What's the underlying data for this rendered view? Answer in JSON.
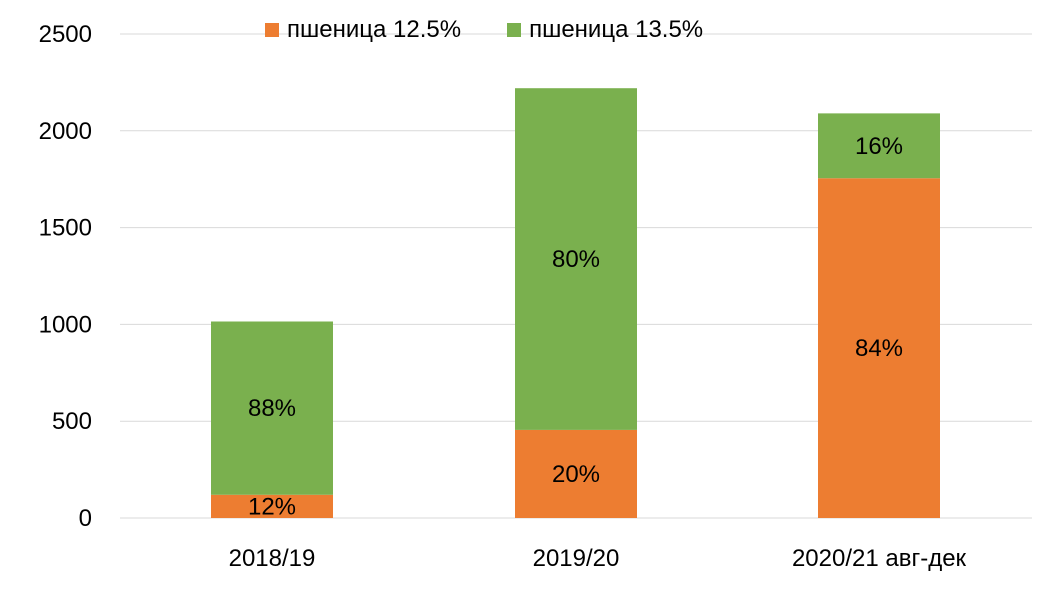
{
  "chart_data": {
    "type": "bar",
    "stacked": true,
    "categories": [
      "2018/19",
      "2019/20",
      "2020/21 авг-дек"
    ],
    "series": [
      {
        "name": "пшеница 12.5%",
        "color": "#ED7D31",
        "values": [
          120,
          455,
          1755
        ],
        "labels": [
          "12%",
          "20%",
          "84%"
        ]
      },
      {
        "name": "пшеница 13.5%",
        "color": "#7AB04E",
        "values": [
          895,
          1765,
          335
        ],
        "labels": [
          "88%",
          "80%",
          "16%"
        ]
      }
    ],
    "ylim": [
      0,
      2500
    ],
    "yticks": [
      "0",
      "500",
      "1000",
      "1500",
      "2000",
      "2500"
    ],
    "grid": true,
    "legend_position": "top"
  }
}
